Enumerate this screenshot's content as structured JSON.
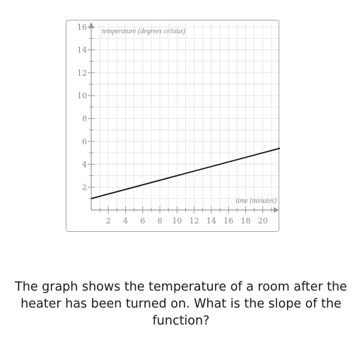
{
  "chart_data": {
    "type": "line",
    "title": "",
    "xlabel": "time (minutes)",
    "ylabel": "temperature (degrees celsius)",
    "xlim": [
      0,
      22
    ],
    "ylim": [
      0,
      17
    ],
    "grid": true,
    "x_ticks": [
      2,
      4,
      6,
      8,
      10,
      12,
      14,
      16,
      18,
      20
    ],
    "y_ticks": [
      2,
      4,
      6,
      8,
      10,
      12,
      14,
      16
    ],
    "series": [
      {
        "name": "temperature",
        "x": [
          0,
          22
        ],
        "y": [
          1,
          5.4
        ]
      }
    ]
  },
  "question": {
    "text": "The graph shows the temperature of a room after the heater has been turned on. What is the slope of the function?"
  }
}
